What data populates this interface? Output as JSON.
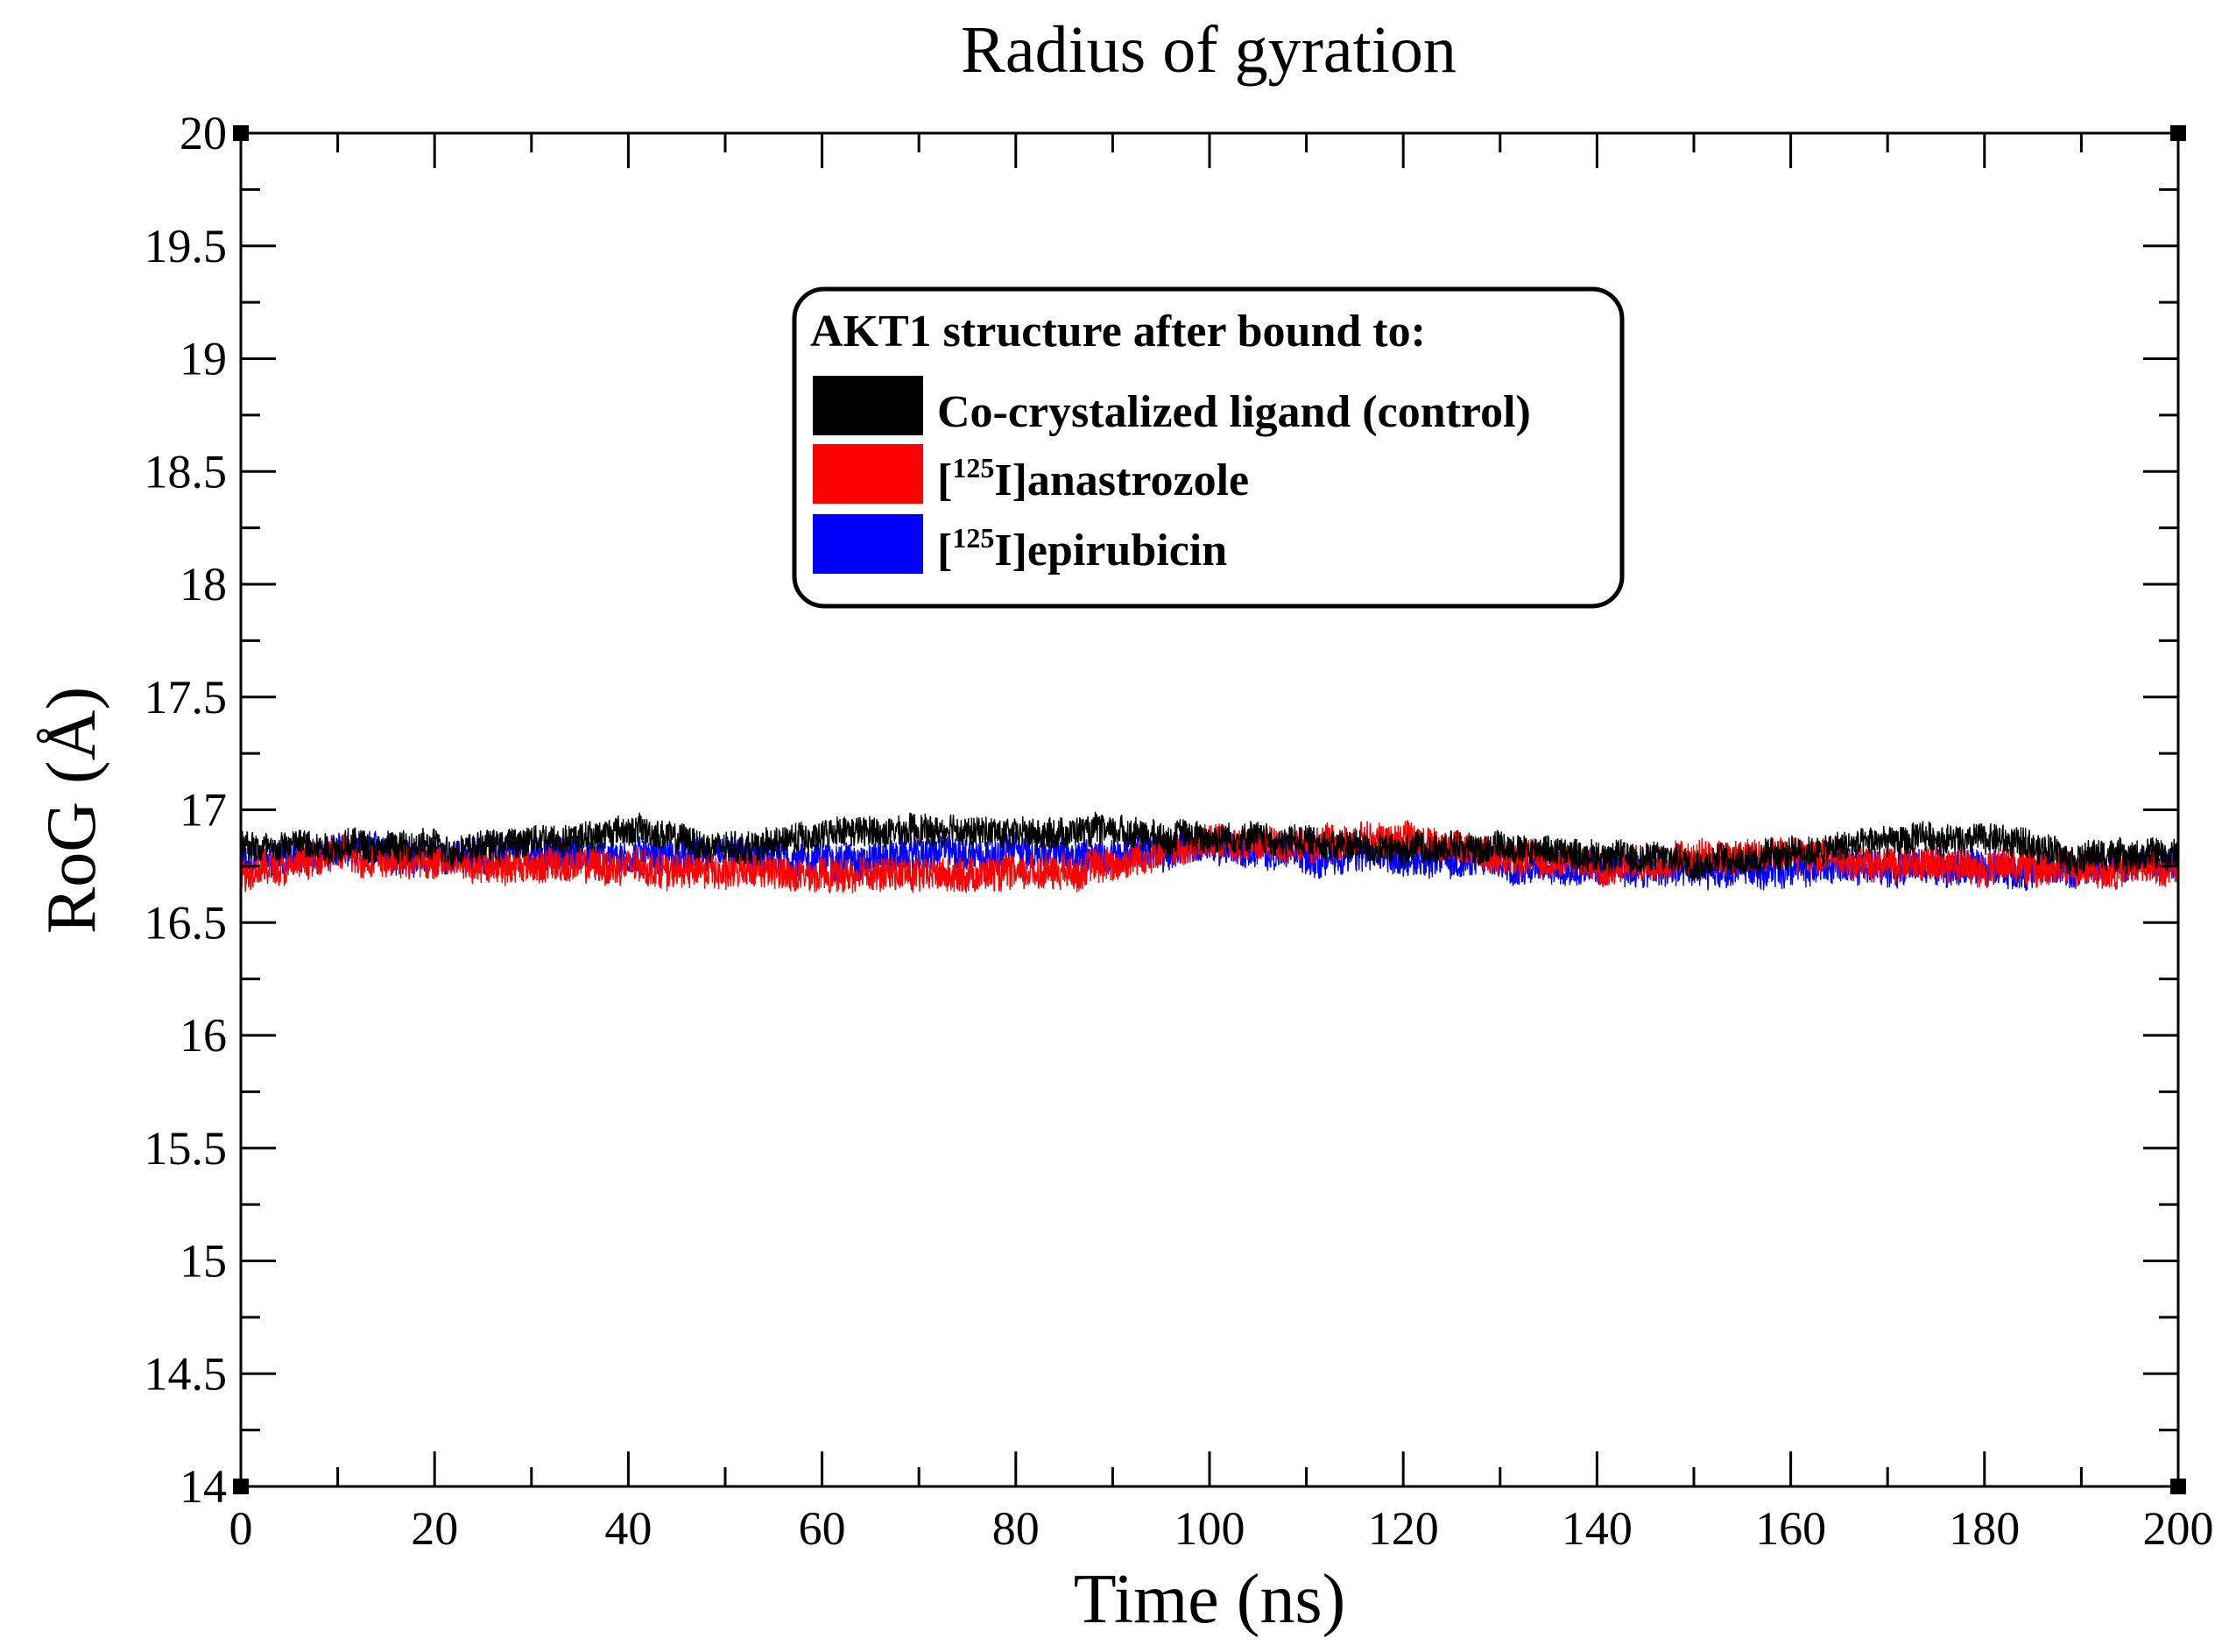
{
  "chart_data": {
    "type": "line",
    "title": "Radius of gyration",
    "xlabel": "Time (ns)",
    "ylabel": "RoG (Å)",
    "xlim": [
      0,
      200
    ],
    "ylim": [
      14,
      20
    ],
    "x_ticks": [
      0,
      20,
      40,
      60,
      80,
      100,
      120,
      140,
      160,
      180,
      200
    ],
    "y_ticks": [
      14,
      14.5,
      15,
      15.5,
      16,
      16.5,
      17,
      17.5,
      18,
      18.5,
      19,
      19.5,
      20
    ],
    "grid": false,
    "legend": {
      "title": "AKT1 structure after bound to:",
      "position": "top-center"
    },
    "sample_step_ns": 0.04,
    "series": [
      {
        "name": "[125I]epirubicin",
        "label_prefix": "[",
        "label_sup": "125",
        "label_suffix": "I]epirubicin",
        "color": "#0000ff",
        "noise_amplitude": 0.09,
        "baseline_x": [
          0,
          10,
          20,
          30,
          40,
          50,
          60,
          70,
          80,
          90,
          100,
          110,
          120,
          130,
          140,
          150,
          160,
          170,
          180,
          190,
          200
        ],
        "baseline_y": [
          16.76,
          16.82,
          16.79,
          16.81,
          16.8,
          16.79,
          16.78,
          16.8,
          16.82,
          16.8,
          16.84,
          16.8,
          16.79,
          16.77,
          16.74,
          16.72,
          16.74,
          16.76,
          16.74,
          16.73,
          16.78
        ]
      },
      {
        "name": "[125I]anastrozole",
        "label_prefix": "[",
        "label_sup": "125",
        "label_suffix": "I]anastrozole",
        "color": "#ff0000",
        "noise_amplitude": 0.09,
        "baseline_x": [
          0,
          10,
          20,
          30,
          40,
          50,
          60,
          70,
          80,
          90,
          100,
          110,
          120,
          130,
          140,
          150,
          160,
          170,
          180,
          190,
          200
        ],
        "baseline_y": [
          16.72,
          16.8,
          16.77,
          16.76,
          16.74,
          16.73,
          16.7,
          16.72,
          16.72,
          16.76,
          16.86,
          16.84,
          16.88,
          16.8,
          16.76,
          16.78,
          16.8,
          16.76,
          16.76,
          16.74,
          16.74
        ]
      },
      {
        "name": "Co-crystalized ligand (control)",
        "label_prefix": "Co-crystalized ligand (control)",
        "label_sup": "",
        "label_suffix": "",
        "color": "#000000",
        "noise_amplitude": 0.08,
        "baseline_x": [
          0,
          10,
          20,
          30,
          40,
          50,
          60,
          70,
          80,
          90,
          100,
          110,
          120,
          130,
          140,
          150,
          160,
          170,
          180,
          190,
          200
        ],
        "baseline_y": [
          16.84,
          16.85,
          16.83,
          16.86,
          16.92,
          16.82,
          16.89,
          16.9,
          16.9,
          16.91,
          16.88,
          16.86,
          16.82,
          16.84,
          16.8,
          16.78,
          16.8,
          16.86,
          16.88,
          16.8,
          16.8
        ]
      }
    ]
  }
}
